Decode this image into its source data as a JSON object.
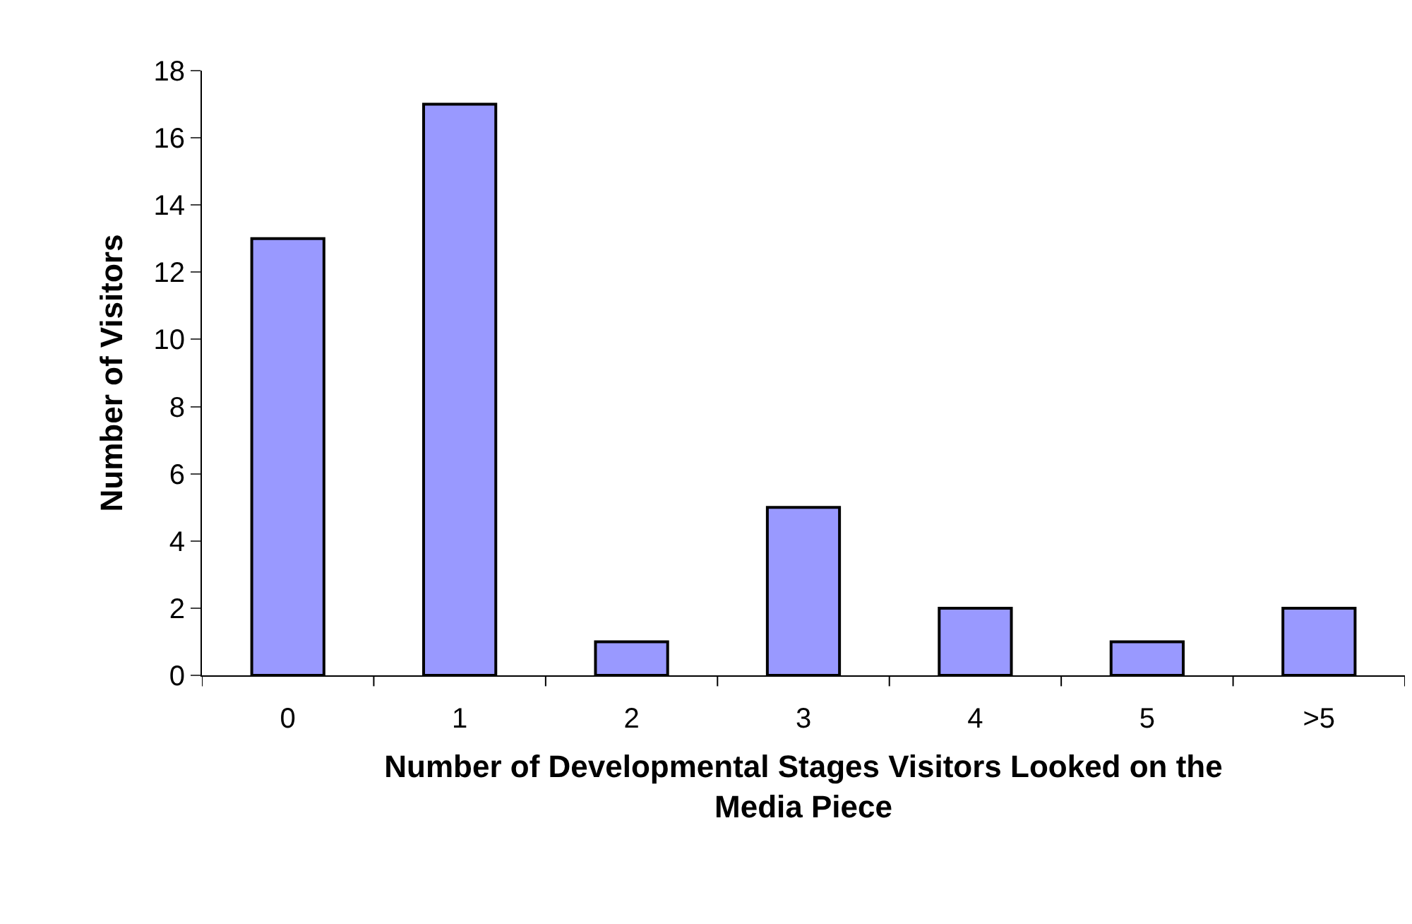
{
  "chart_data": {
    "type": "bar",
    "xlabel": "Number of Developmental Stages Visitors Looked on the Media Piece",
    "ylabel": "Number of Visitors",
    "categories": [
      "0",
      "1",
      "2",
      "3",
      "4",
      "5",
      ">5"
    ],
    "values": [
      13,
      17,
      1,
      5,
      2,
      1,
      2
    ],
    "color": "#9999ff",
    "ylim": [
      0,
      18
    ],
    "yticks": [
      0,
      2,
      4,
      6,
      8,
      10,
      12,
      14,
      16,
      18
    ]
  }
}
